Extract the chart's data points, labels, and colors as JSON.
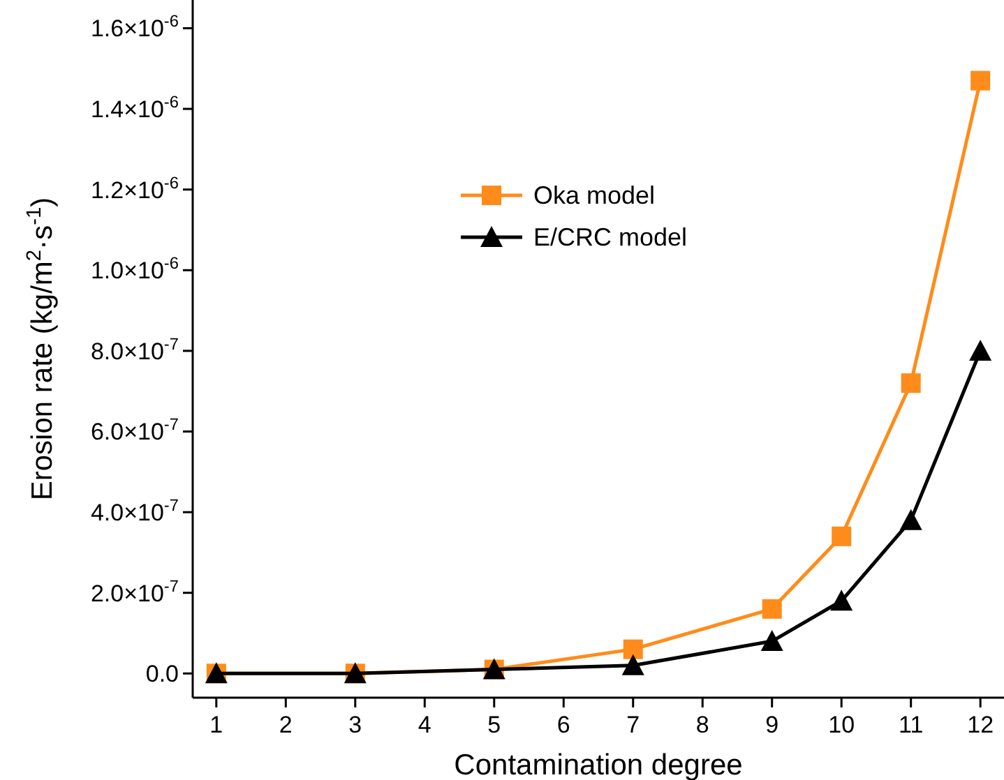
{
  "chart_data": {
    "type": "line",
    "xlabel": "Contamination degree",
    "ylabel": "Erosion rate (kg/m$^{2}$·s$^{-1}$)",
    "xlim": [
      0.66,
      12.34
    ],
    "xticks": [
      1,
      2,
      3,
      4,
      5,
      6,
      7,
      8,
      9,
      10,
      11,
      12
    ],
    "ylim": [
      -6e-08,
      1.67e-06
    ],
    "yticks": [
      {
        "value": 0,
        "label": "0.0"
      },
      {
        "value": 2e-07,
        "label": "2.0×10$^{-7}$"
      },
      {
        "value": 4e-07,
        "label": "4.0×10$^{-7}$"
      },
      {
        "value": 6e-07,
        "label": "6.0×10$^{-7}$"
      },
      {
        "value": 8e-07,
        "label": "8.0×10$^{-7}$"
      },
      {
        "value": 1e-06,
        "label": "1.0×10$^{-6}$"
      },
      {
        "value": 1.2e-06,
        "label": "1.2×10$^{-6}$"
      },
      {
        "value": 1.4e-06,
        "label": "1.4×10$^{-6}$"
      },
      {
        "value": 1.6e-06,
        "label": "1.6×10$^{-6}$"
      }
    ],
    "x": [
      1,
      3,
      5,
      7,
      9,
      10,
      11,
      12
    ],
    "legend": "top",
    "grid": false,
    "series": [
      {
        "name": "Oka model",
        "color": "#ff8c1a",
        "marker": "square",
        "values": [
          0,
          0,
          1e-08,
          6e-08,
          1.6e-07,
          3.4e-07,
          7.2e-07,
          1.47e-06
        ]
      },
      {
        "name": "E/CRC model",
        "color": "#000000",
        "marker": "triangle",
        "values": [
          0,
          0,
          1e-08,
          2e-08,
          8e-08,
          1.8e-07,
          3.8e-07,
          8e-07
        ]
      }
    ]
  }
}
